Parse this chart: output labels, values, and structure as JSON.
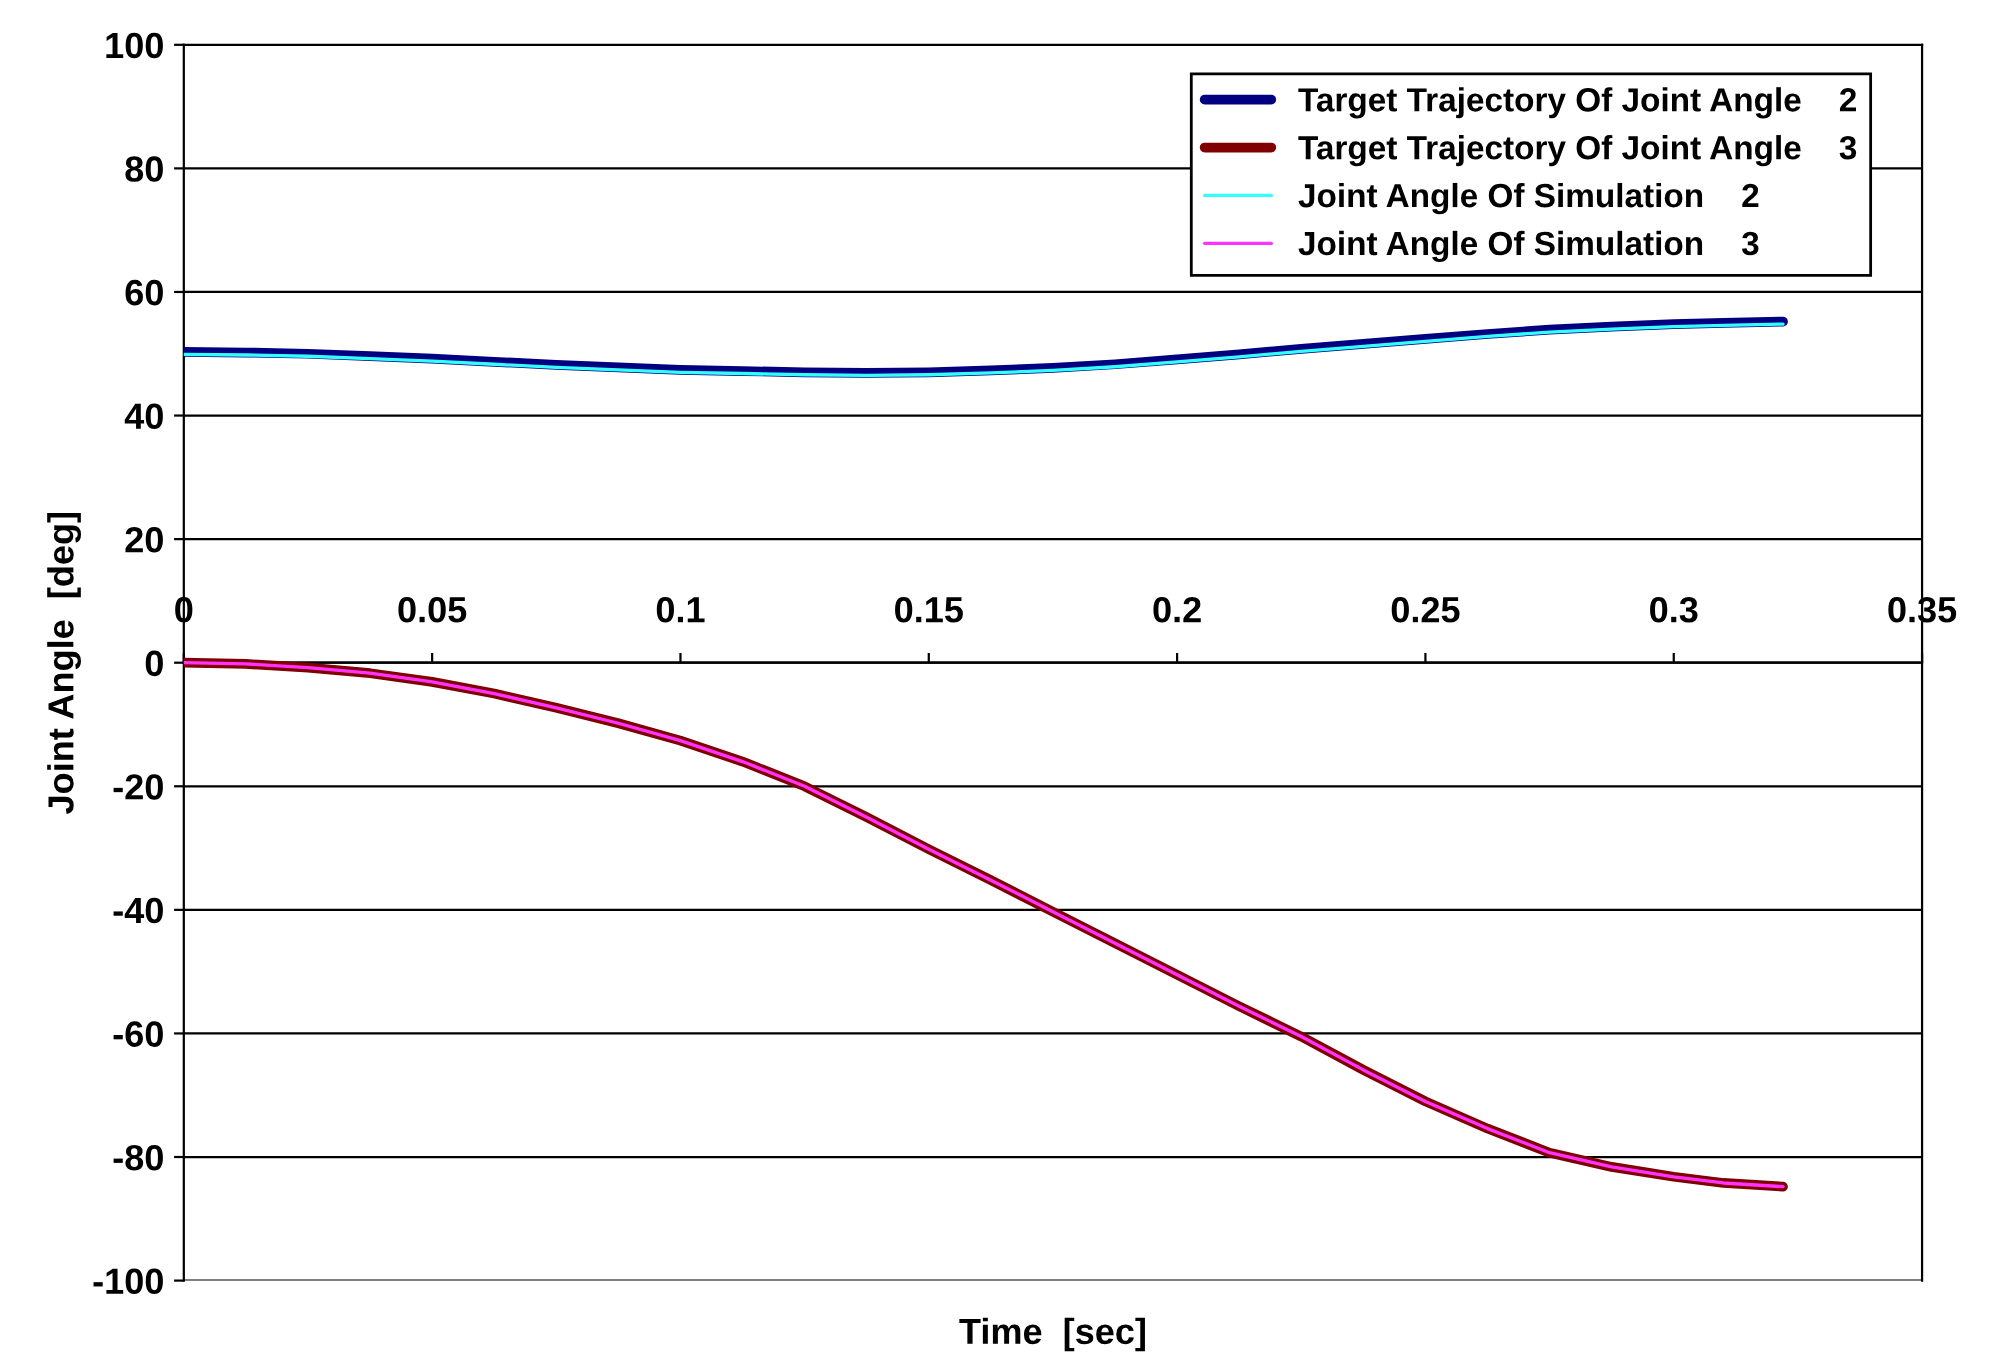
{
  "chart_data": {
    "type": "line",
    "xlabel": "Time  [sec]",
    "ylabel": "Joint Angle  [deg]",
    "x": [
      0,
      0.0125,
      0.025,
      0.0375,
      0.05,
      0.0625,
      0.075,
      0.0875,
      0.1,
      0.1125,
      0.125,
      0.1375,
      0.15,
      0.1625,
      0.175,
      0.1875,
      0.2,
      0.2125,
      0.225,
      0.2375,
      0.25,
      0.2625,
      0.275,
      0.2875,
      0.3,
      0.31,
      0.322
    ],
    "xlim": [
      0,
      0.35
    ],
    "xticks": [
      0,
      0.05,
      0.1,
      0.15,
      0.2,
      0.25,
      0.3,
      0.35
    ],
    "ylim": [
      -100,
      100
    ],
    "yticks": [
      -100,
      -80,
      -60,
      -40,
      -20,
      0,
      20,
      40,
      60,
      80,
      100
    ],
    "grid": "y",
    "legend": "top right",
    "marker": "none",
    "line_style": "solid",
    "series": [
      {
        "name": "Target Trajectory Of Joint Angle    2",
        "color": "#000080",
        "values": [
          50.3,
          50.2,
          50.0,
          49.6,
          49.2,
          48.7,
          48.2,
          47.8,
          47.4,
          47.2,
          47.0,
          46.9,
          47.0,
          47.3,
          47.7,
          48.3,
          49.1,
          49.9,
          50.8,
          51.6,
          52.4,
          53.2,
          53.9,
          54.4,
          54.8,
          55.0,
          55.2
        ]
      },
      {
        "name": "Target Trajectory Of Joint Angle    3",
        "color": "#800000",
        "values": [
          0,
          -0.2,
          -0.8,
          -1.7,
          -3.1,
          -5.0,
          -7.3,
          -9.8,
          -12.6,
          -16.0,
          -20.0,
          -25.0,
          -30.2,
          -35.2,
          -40.3,
          -45.4,
          -50.5,
          -55.6,
          -60.5,
          -65.9,
          -71.0,
          -75.4,
          -79.3,
          -81.6,
          -83.2,
          -84.2,
          -84.8
        ]
      },
      {
        "name": "Joint Angle Of Simulation    2",
        "color": "#33ffff",
        "values": [
          49.9,
          49.8,
          49.6,
          49.2,
          48.8,
          48.3,
          47.8,
          47.4,
          47.0,
          46.8,
          46.6,
          46.5,
          46.6,
          46.9,
          47.3,
          47.9,
          48.7,
          49.5,
          50.4,
          51.2,
          52.0,
          52.8,
          53.5,
          54.0,
          54.4,
          54.6,
          54.8
        ]
      },
      {
        "name": "Joint Angle Of Simulation    3",
        "color": "#ff33ff",
        "values": [
          0,
          -0.2,
          -0.8,
          -1.7,
          -3.1,
          -5.0,
          -7.3,
          -9.8,
          -12.6,
          -16.0,
          -20.0,
          -25.0,
          -30.2,
          -35.2,
          -40.3,
          -45.4,
          -50.5,
          -55.6,
          -60.5,
          -65.9,
          -71.0,
          -75.4,
          -79.3,
          -81.6,
          -83.2,
          -84.2,
          -84.8
        ]
      }
    ]
  }
}
